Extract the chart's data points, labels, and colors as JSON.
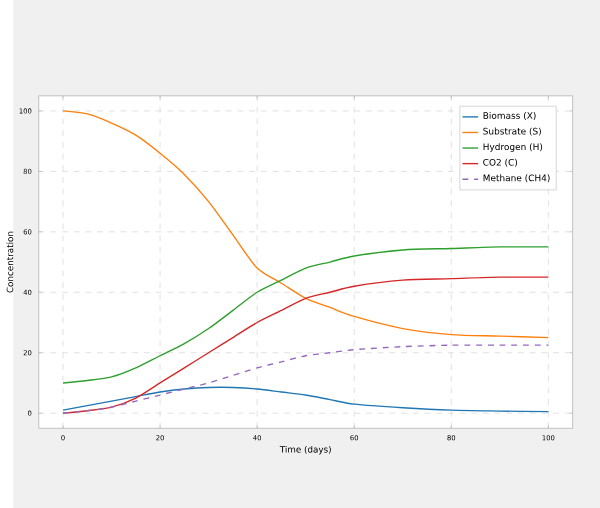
{
  "chart_data": {
    "type": "line",
    "xlabel": "Time (days)",
    "ylabel": "Concentration",
    "x": [
      0,
      5,
      10,
      15,
      20,
      25,
      30,
      35,
      40,
      45,
      50,
      55,
      60,
      70,
      80,
      90,
      100
    ],
    "series": [
      {
        "name": "Biomass (X)",
        "color": "#1f77b4",
        "values": [
          1,
          2.5,
          4,
          5.5,
          7,
          8,
          8.5,
          8.5,
          8,
          7,
          6,
          4.5,
          3,
          1.8,
          1,
          0.7,
          0.5
        ]
      },
      {
        "name": "Substrate (S)",
        "color": "#ff7f0e",
        "values": [
          100,
          99,
          96,
          92,
          86,
          79,
          70,
          59,
          48,
          43,
          38,
          35,
          32,
          28,
          26,
          25.5,
          25
        ]
      },
      {
        "name": "Hydrogen (H)",
        "color": "#2ca02c",
        "values": [
          10,
          10.8,
          12,
          15,
          19,
          23,
          28,
          34,
          40,
          44,
          48,
          50,
          52,
          54,
          54.5,
          55,
          55
        ]
      },
      {
        "name": "CO2 (C)",
        "color": "#d62728",
        "values": [
          0,
          0.8,
          2,
          5,
          10,
          15,
          20,
          25,
          30,
          34,
          38,
          40,
          42,
          44,
          44.5,
          45,
          45
        ]
      },
      {
        "name": "Methane (CH4)",
        "color": "#9467bd",
        "line_style": "dashed",
        "values": [
          0,
          0.8,
          2,
          4,
          6,
          8,
          10,
          12.5,
          15,
          17,
          19,
          20,
          21,
          22,
          22.5,
          22.5,
          22.5
        ]
      }
    ],
    "xlim": [
      -5,
      105
    ],
    "ylim": [
      -5,
      105
    ],
    "xticks": [
      0,
      20,
      40,
      60,
      80,
      100
    ],
    "yticks": [
      0,
      20,
      40,
      60,
      80,
      100
    ],
    "grid": true,
    "legend": "top right",
    "line_style": "solid",
    "marker": "none"
  }
}
